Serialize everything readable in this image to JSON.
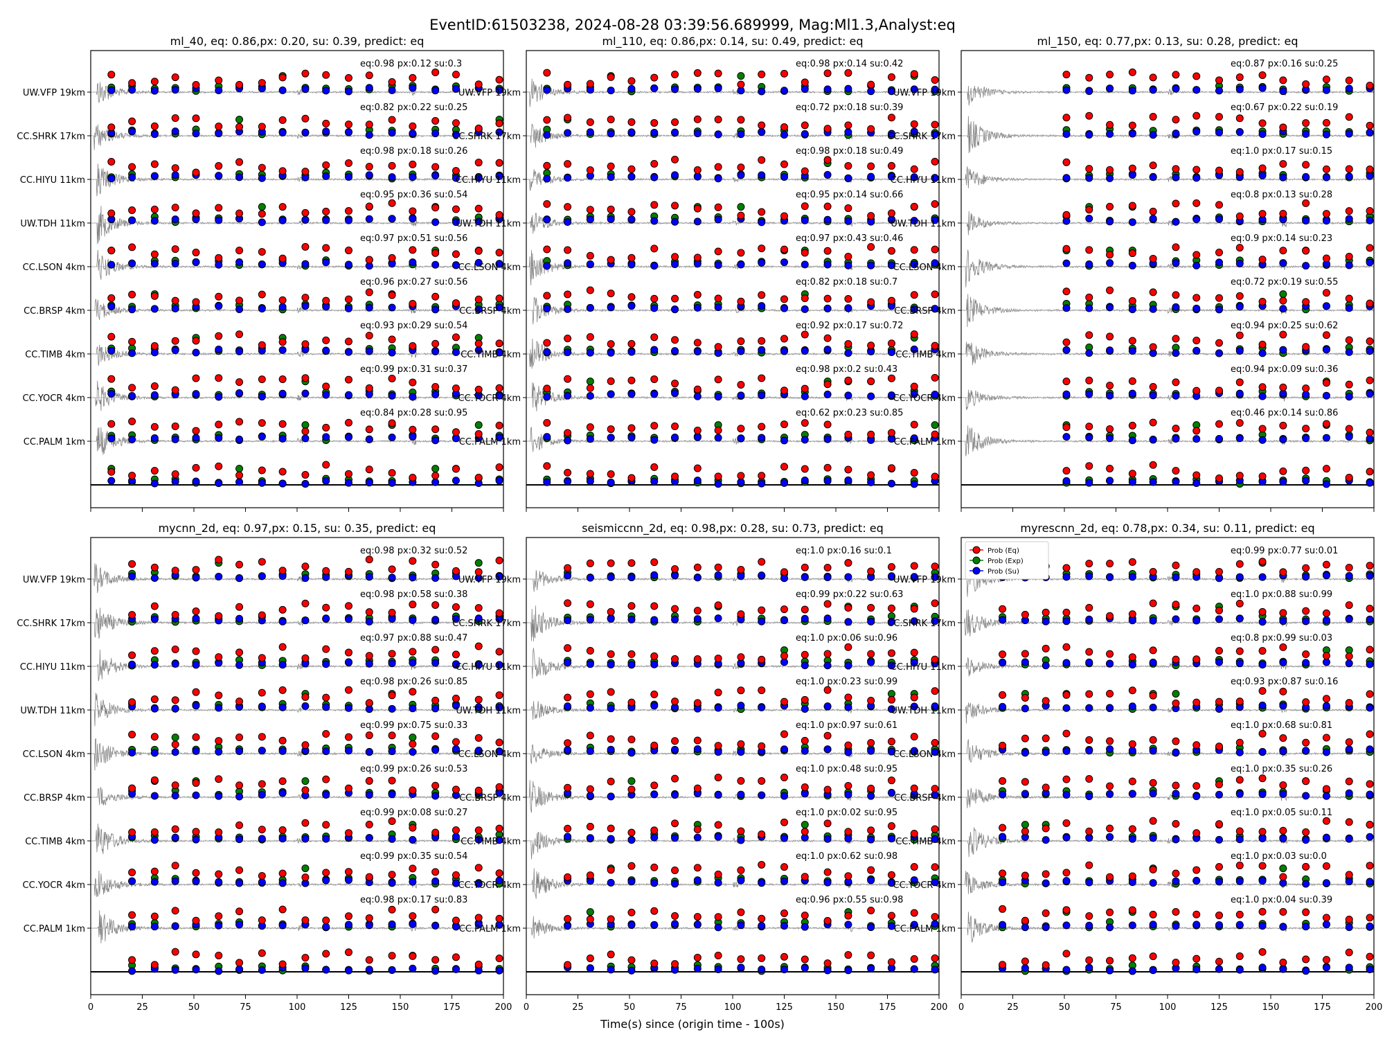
{
  "figure": {
    "title": "EventID:61503238, 2024-08-28 03:39:56.689999, Mag:Ml1.3,Analyst:eq",
    "xlabel": "Time(s) since (origin time - 100s)"
  },
  "legend": {
    "entries": [
      {
        "label": "Prob (Eq)",
        "color": "#ff0000"
      },
      {
        "label": "Prob (Exp)",
        "color": "#008000"
      },
      {
        "label": "Prob (Su)",
        "color": "#0000ff"
      }
    ]
  },
  "colors": {
    "eq": "#ff0000",
    "exp": "#008000",
    "su": "#0000ff",
    "waveform": "#808080",
    "baseline": "#000000"
  },
  "chart_data": [
    {
      "type": "scatter",
      "title": "ml_40, eq: 0.86,px: 0.20, su: 0.39, predict: eq",
      "xlim": [
        0,
        200
      ],
      "xticks": [
        0,
        25,
        50,
        75,
        100,
        125,
        150,
        175,
        200
      ],
      "stations": [
        "UW.VFP 19km",
        "CC.SHRK 17km",
        "CC.HIYU 11km",
        "UW.TDH 11km",
        "CC.LSON 4km",
        "CC.BRSP 4km",
        "CC.TIMB 4km",
        "CC.YOCR 4km",
        "CC.PALM 1km"
      ],
      "station_labels": [
        "eq:0.98  px:0.12  su:0.3",
        "eq:0.82  px:0.22  su:0.25",
        "eq:0.98  px:0.18  su:0.26",
        "eq:0.95  px:0.36  su:0.54",
        "eq:0.97  px:0.51  su:0.56",
        "eq:0.96  px:0.27  su:0.56",
        "eq:0.93  px:0.29  su:0.54",
        "eq:0.99  px:0.31  su:0.37",
        "eq:0.84  px:0.28  su:0.95"
      ],
      "x_times": [
        10,
        20,
        31,
        41,
        51,
        62,
        72,
        83,
        93,
        104,
        114,
        125,
        135,
        146,
        156,
        167,
        177,
        188,
        198
      ],
      "show_x_ticklabels": false
    },
    {
      "type": "scatter",
      "title": "ml_110, eq: 0.86,px: 0.14, su: 0.49, predict: eq",
      "xlim": [
        0,
        200
      ],
      "xticks": [
        0,
        25,
        50,
        75,
        100,
        125,
        150,
        175,
        200
      ],
      "stations": [
        "UW.VFP 19km",
        "CC.SHRK 17km",
        "CC.HIYU 11km",
        "UW.TDH 11km",
        "CC.LSON 4km",
        "CC.BRSP 4km",
        "CC.TIMB 4km",
        "CC.YOCR 4km",
        "CC.PALM 1km"
      ],
      "station_labels": [
        "eq:0.98  px:0.14  su:0.42",
        "eq:0.72  px:0.18  su:0.39",
        "eq:0.98  px:0.18  su:0.49",
        "eq:0.95  px:0.14  su:0.66",
        "eq:0.97  px:0.43  su:0.46",
        "eq:0.82  px:0.18  su:0.7",
        "eq:0.92  px:0.17  su:0.72",
        "eq:0.98  px:0.2     su:0.43",
        "eq:0.62  px:0.23  su:0.85"
      ],
      "x_times": [
        10,
        20,
        31,
        41,
        51,
        62,
        72,
        83,
        93,
        104,
        114,
        125,
        135,
        146,
        156,
        167,
        177,
        188,
        198
      ],
      "show_x_ticklabels": false
    },
    {
      "type": "scatter",
      "title": "ml_150, eq: 0.77,px: 0.13, su: 0.28, predict: eq",
      "xlim": [
        0,
        200
      ],
      "xticks": [
        0,
        25,
        50,
        75,
        100,
        125,
        150,
        175,
        200
      ],
      "stations": [
        "UW.VFP 19km",
        "CC.SHRK 17km",
        "CC.HIYU 11km",
        "UW.TDH 11km",
        "CC.LSON 4km",
        "CC.BRSP 4km",
        "CC.TIMB 4km",
        "CC.YOCR 4km",
        "CC.PALM 1km"
      ],
      "station_labels": [
        "eq:0.87  px:0.16  su:0.25",
        "eq:0.67  px:0.22  su:0.19",
        "eq:1.0    px:0.17  su:0.15",
        "eq:0.8    px:0.13  su:0.28",
        "eq:0.9    px:0.14  su:0.23",
        "eq:0.72  px:0.19  su:0.55",
        "eq:0.94  px:0.25  su:0.62",
        "eq:0.94  px:0.09  su:0.36",
        "eq:0.46  px:0.14  su:0.86"
      ],
      "x_times": [
        51,
        62,
        72,
        83,
        93,
        104,
        114,
        125,
        135,
        146,
        156,
        167,
        177,
        188,
        198
      ],
      "show_x_ticklabels": false
    },
    {
      "type": "scatter",
      "title": "mycnn_2d, eq: 0.97,px: 0.15, su: 0.35, predict: eq",
      "xlim": [
        0,
        200
      ],
      "xticks": [
        0,
        25,
        50,
        75,
        100,
        125,
        150,
        175,
        200
      ],
      "stations": [
        "UW.VFP 19km",
        "CC.SHRK 17km",
        "CC.HIYU 11km",
        "UW.TDH 11km",
        "CC.LSON 4km",
        "CC.BRSP 4km",
        "CC.TIMB 4km",
        "CC.YOCR 4km",
        "CC.PALM 1km"
      ],
      "station_labels": [
        "eq:0.98  px:0.32  su:0.52",
        "eq:0.98  px:0.58  su:0.38",
        "eq:0.97  px:0.88  su:0.47",
        "eq:0.98  px:0.26  su:0.85",
        "eq:0.99  px:0.75  su:0.33",
        "eq:0.99  px:0.26  su:0.53",
        "eq:0.99  px:0.08  su:0.27",
        "eq:0.99  px:0.35  su:0.54",
        "eq:0.98  px:0.17  su:0.83"
      ],
      "x_times": [
        20,
        31,
        41,
        51,
        62,
        72,
        83,
        93,
        104,
        114,
        125,
        135,
        146,
        156,
        167,
        177,
        188,
        198
      ],
      "show_x_ticklabels": true
    },
    {
      "type": "scatter",
      "title": "seismiccnn_2d, eq: 0.98,px: 0.28, su: 0.73, predict: eq",
      "xlim": [
        0,
        200
      ],
      "xticks": [
        0,
        25,
        50,
        75,
        100,
        125,
        150,
        175,
        200
      ],
      "stations": [
        "UW.VFP 19km",
        "CC.SHRK 17km",
        "CC.HIYU 11km",
        "UW.TDH 11km",
        "CC.LSON 4km",
        "CC.BRSP 4km",
        "CC.TIMB 4km",
        "CC.YOCR 4km",
        "CC.PALM 1km"
      ],
      "station_labels": [
        "eq:1.0    px:0.16  su:0.1",
        "eq:0.99  px:0.22  su:0.63",
        "eq:1.0    px:0.06  su:0.96",
        "eq:1.0    px:0.23  su:0.99",
        "eq:1.0    px:0.97  su:0.61",
        "eq:1.0    px:0.48  su:0.95",
        "eq:1.0    px:0.02  su:0.95",
        "eq:1.0    px:0.62  su:0.98",
        "eq:0.96  px:0.55  su:0.98"
      ],
      "x_times": [
        20,
        31,
        41,
        51,
        62,
        72,
        83,
        93,
        104,
        114,
        125,
        135,
        146,
        156,
        167,
        177,
        188,
        198
      ],
      "show_x_ticklabels": true
    },
    {
      "type": "scatter",
      "title": "myrescnn_2d, eq: 0.78,px: 0.34, su: 0.11, predict: eq",
      "xlim": [
        0,
        200
      ],
      "xticks": [
        0,
        25,
        50,
        75,
        100,
        125,
        150,
        175,
        200
      ],
      "stations": [
        "UW.VFP 19km",
        "CC.SHRK 17km",
        "CC.HIYU 11km",
        "UW.TDH 11km",
        "CC.LSON 4km",
        "CC.BRSP 4km",
        "CC.TIMB 4km",
        "CC.YOCR 4km",
        "CC.PALM 1km"
      ],
      "station_labels": [
        "eq:0.99  px:0.77  su:0.01",
        "eq:1.0    px:0.88  su:0.99",
        "eq:0.8    px:0.99  su:0.03",
        "eq:0.93  px:0.87  su:0.16",
        "eq:1.0    px:0.68  su:0.81",
        "eq:1.0    px:0.35  su:0.26",
        "eq:1.0    px:0.05  su:0.11",
        "eq:1.0    px:0.03  su:0.0",
        "eq:1.0    px:0.04  su:0.39"
      ],
      "x_times": [
        20,
        31,
        41,
        51,
        62,
        72,
        83,
        93,
        104,
        114,
        125,
        135,
        146,
        156,
        167,
        177,
        188,
        198
      ],
      "show_x_ticklabels": true,
      "legend": true
    }
  ]
}
